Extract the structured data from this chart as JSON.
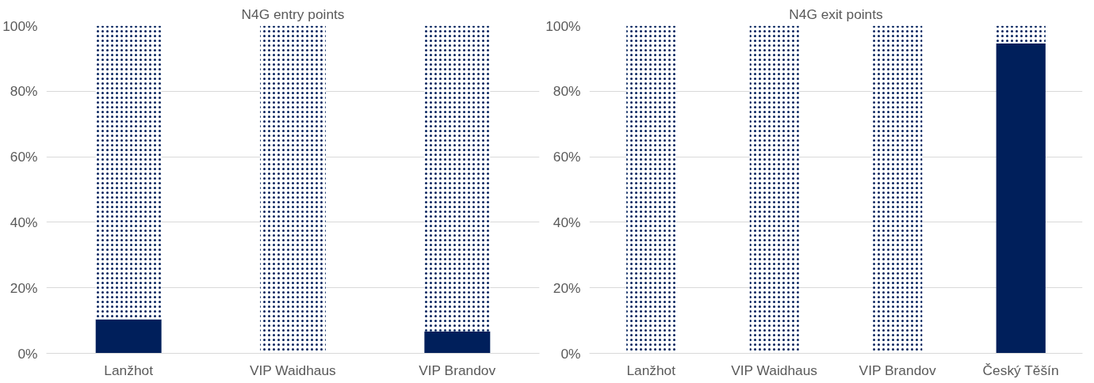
{
  "chart_data": [
    {
      "type": "bar",
      "title": "N4G entry points",
      "categories": [
        "Lanžhot",
        "VIP Waidhaus",
        "VIP Brandov"
      ],
      "stacked": true,
      "series": [
        {
          "color": "#001f5b",
          "values": [
            10.4,
            0,
            6.7
          ]
        },
        {
          "color": "#001f5b",
          "values": [
            89.6,
            100,
            93.3
          ]
        }
      ],
      "ylim": [
        0,
        100
      ],
      "yticks": [
        {
          "value": 0,
          "label": "0%"
        },
        {
          "value": 20,
          "label": "20%"
        },
        {
          "value": 40,
          "label": "40%"
        },
        {
          "value": 60,
          "label": "60%"
        },
        {
          "value": 80,
          "label": "80%"
        },
        {
          "value": 100,
          "label": "100%"
        }
      ],
      "grid": "y"
    },
    {
      "type": "bar",
      "title": "N4G exit points",
      "categories": [
        "Lanžhot",
        "VIP Waidhaus",
        "VIP Brandov",
        "Český Těšín"
      ],
      "stacked": true,
      "series": [
        {
          "color": "#001f5b",
          "values": [
            0,
            0,
            0,
            94.6
          ]
        },
        {
          "color": "#001f5b",
          "values": [
            100,
            100,
            100,
            5.4
          ]
        }
      ],
      "ylim": [
        0,
        100
      ],
      "yticks": [
        {
          "value": 0,
          "label": "0%"
        },
        {
          "value": 20,
          "label": "20%"
        },
        {
          "value": 40,
          "label": "40%"
        },
        {
          "value": 60,
          "label": "60%"
        },
        {
          "value": 80,
          "label": "80%"
        },
        {
          "value": 100,
          "label": "100%"
        }
      ],
      "grid": "y"
    }
  ]
}
